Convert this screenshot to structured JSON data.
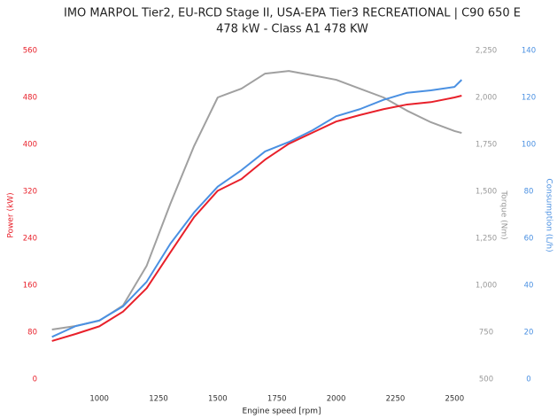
{
  "chart_data": {
    "type": "line",
    "title": "IMO MARPOL Tier2, EU-RCD Stage II, USA-EPA Tier3 RECREATIONAL | C90 650 E",
    "subtitle": "478 kW - Class A1 478 KW",
    "xlabel": "Engine speed [rpm]",
    "ylabel": "Power (kW)",
    "y2label": "Torque (Nm)",
    "y3label": "Consumption (L/h)",
    "x": [
      800,
      900,
      1000,
      1100,
      1200,
      1300,
      1400,
      1500,
      1600,
      1700,
      1800,
      1900,
      2000,
      2100,
      2200,
      2300,
      2400,
      2500,
      2530
    ],
    "xlim": [
      790,
      2540
    ],
    "xticks": [
      1000,
      1250,
      1500,
      1750,
      2000,
      2250,
      2500
    ],
    "ylim": [
      0,
      560
    ],
    "yticks": [
      0,
      80,
      160,
      240,
      320,
      400,
      480,
      560
    ],
    "y2lim": [
      500,
      2250
    ],
    "y2ticks": [
      500,
      750,
      {
        "value": 1000,
        "label": "1,000"
      },
      {
        "value": 1250,
        "label": "1,250"
      },
      {
        "value": 1500,
        "label": "1,500"
      },
      {
        "value": 1750,
        "label": "1,750"
      },
      {
        "value": 2000,
        "label": "2,000"
      },
      {
        "value": 2250,
        "label": "2,250"
      }
    ],
    "y3lim": [
      0,
      140
    ],
    "y3ticks": [
      0,
      20,
      40,
      60,
      80,
      100,
      120,
      140
    ],
    "series": [
      {
        "name": "Power (kW)",
        "color": "#e8202a",
        "axis": "y",
        "values": [
          65,
          77,
          90,
          115,
          155,
          216,
          276,
          321,
          341,
          374,
          401,
          420,
          439,
          450,
          460,
          468,
          472,
          480,
          483
        ]
      },
      {
        "name": "Torque (Nm)",
        "color": "#a0a0a0",
        "axis": "y2",
        "values": [
          764,
          783,
          811,
          892,
          1104,
          1434,
          1741,
          2000,
          2047,
          2127,
          2141,
          2118,
          2094,
          2047,
          2000,
          1929,
          1868,
          1821,
          1811
        ]
      },
      {
        "name": "Consumption (L/h)",
        "color": "#4a90e2",
        "axis": "y3",
        "values": [
          18,
          22.6,
          25,
          31,
          41.5,
          57.7,
          71,
          82,
          89,
          97,
          101,
          106,
          112,
          115,
          119,
          122,
          123,
          124.5,
          127.5
        ]
      }
    ]
  }
}
